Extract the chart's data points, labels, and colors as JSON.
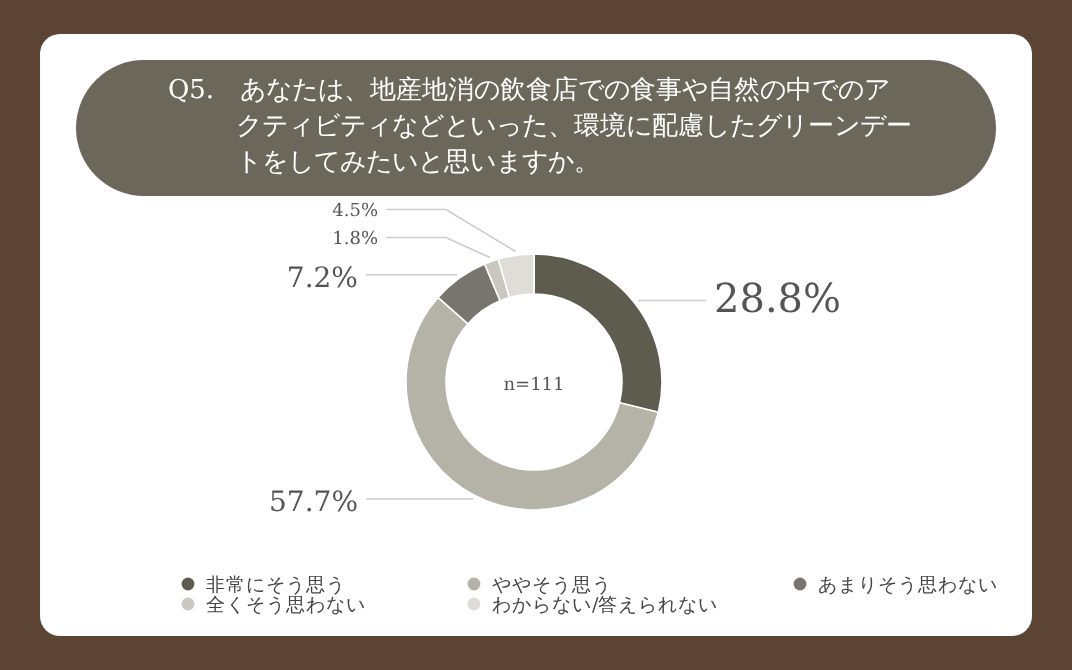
{
  "chart_data": {
    "type": "donut",
    "title": "Q5.　あなたは、地産地消の飲食店での食事や自然の中でのアクティビティなどといった、環境に配慮したグリーンデートをしてみたいと思いますか。",
    "categories": [
      "非常にそう思う",
      "ややそう思う",
      "あまりそう思わない",
      "全くそう思わない",
      "わからない/答えられない"
    ],
    "values": [
      28.8,
      57.7,
      7.2,
      1.8,
      4.5
    ],
    "colors": [
      "#5e5b4f",
      "#b5b2a7",
      "#77756d",
      "#c9c7c0",
      "#deddd8"
    ],
    "annotations": [
      "n=111"
    ],
    "value_labels": [
      "28.8%",
      "57.7%",
      "7.2%",
      "1.8%",
      "4.5%"
    ],
    "legend": "bottom"
  }
}
